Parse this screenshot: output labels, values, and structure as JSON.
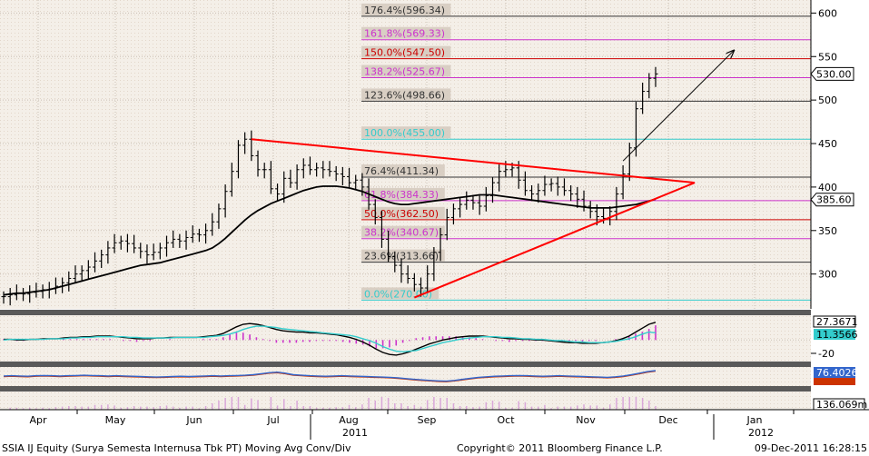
{
  "chart_data": {
    "type": "line",
    "footer": {
      "left": "SSIA IJ Equity (Surya Semesta Internusa Tbk PT) Moving Avg Conv/Div",
      "center": "Copyright© 2011 Bloomberg Finance L.P.",
      "right": "09-Dec-2011 16:28:15"
    },
    "x_labels": {
      "months": [
        "Apr",
        "May",
        "Jun",
        "Jul",
        "Aug",
        "Sep",
        "Oct",
        "Nov",
        "Dec",
        "Jan"
      ],
      "years": [
        "2011",
        "2012"
      ]
    },
    "price_panel": {
      "ylim": [
        260,
        615
      ],
      "yticks": [
        300,
        350,
        400,
        450,
        500,
        550,
        600
      ],
      "last_price_label": "530.00",
      "last_price": 530,
      "ma_label": "385.60",
      "ma_value": 385.6,
      "fibonacci_levels": [
        {
          "label": "176.4%(596.34)",
          "value": 596.34,
          "color": "#333333"
        },
        {
          "label": "161.8%(569.33)",
          "value": 569.33,
          "color": "#cc33cc"
        },
        {
          "label": "150.0%(547.50)",
          "value": 547.5,
          "color": "#cc0000"
        },
        {
          "label": "138.2%(525.67)",
          "value": 525.67,
          "color": "#cc33cc"
        },
        {
          "label": "123.6%(498.66)",
          "value": 498.66,
          "color": "#333333"
        },
        {
          "label": "100.0%(455.00)",
          "value": 455.0,
          "color": "#33cccc"
        },
        {
          "label": "76.4%(411.34)",
          "value": 411.34,
          "color": "#333333"
        },
        {
          "label": "61.8%(384.33)",
          "value": 384.33,
          "color": "#cc33cc"
        },
        {
          "label": "50.0%(362.50)",
          "value": 362.5,
          "color": "#cc0000"
        },
        {
          "label": "38.2%(340.67)",
          "value": 340.67,
          "color": "#cc33cc"
        },
        {
          "label": "23.6%(313.66)",
          "value": 313.66,
          "color": "#333333"
        },
        {
          "label": "0.0%(270.00)",
          "value": 270.0,
          "color": "#33cccc"
        }
      ],
      "series": [
        {
          "name": "",
          "color": "#000000",
          "style": "bar",
          "values": [
            274,
            276,
            278,
            277,
            279,
            280,
            282,
            283,
            286,
            290,
            295,
            300,
            304,
            308,
            315,
            322,
            330,
            336,
            338,
            335,
            330,
            326,
            322,
            325,
            330,
            336,
            340,
            338,
            342,
            346,
            345,
            350,
            360,
            375,
            395,
            418,
            448,
            455,
            436,
            420,
            420,
            398,
            392,
            410,
            405,
            420,
            425,
            420,
            422,
            420,
            418,
            415,
            412,
            405,
            408,
            400,
            380,
            365,
            340,
            320,
            310,
            300,
            295,
            288,
            284,
            300,
            325,
            345,
            365,
            375,
            380,
            385,
            382,
            378,
            390,
            405,
            418,
            420,
            422,
            408,
            396,
            392,
            396,
            403,
            404,
            400,
            396,
            392,
            386,
            378,
            372,
            366,
            364,
            372,
            392,
            415,
            445,
            490,
            510,
            525,
            530
          ]
        },
        {
          "name": "",
          "color": "#000000",
          "style": "line",
          "values": [
            276,
            277,
            278,
            278,
            279,
            280,
            281,
            282,
            284,
            286,
            288,
            290,
            292,
            294,
            296,
            298,
            300,
            302,
            304,
            306,
            308,
            310,
            311,
            312,
            313,
            315,
            317,
            319,
            321,
            323,
            325,
            327,
            330,
            335,
            341,
            348,
            355,
            362,
            368,
            373,
            377,
            381,
            384,
            387,
            390,
            393,
            396,
            398,
            400,
            401,
            401,
            401,
            400,
            399,
            397,
            395,
            392,
            389,
            386,
            383,
            381,
            380,
            380,
            381,
            382,
            383,
            384,
            385,
            386,
            387,
            388,
            389,
            390,
            391,
            391,
            391,
            390,
            389,
            388,
            387,
            386,
            385,
            384,
            383,
            382,
            381,
            380,
            379,
            378,
            377,
            376,
            376,
            376,
            376,
            377,
            378,
            379,
            380,
            382,
            384,
            386
          ]
        }
      ],
      "annotations": {
        "trend_arrow_from": {
          "x_index": 95,
          "value": 430
        },
        "trend_arrow_to": {
          "x_index": 112,
          "value": 557
        },
        "triangle_apex": {
          "x_index": 106,
          "value": 405
        }
      }
    },
    "macd_panel": {
      "labels": {
        "upper": "27.3671",
        "lower": "11.3566",
        "tick": "-20"
      },
      "series": [
        {
          "name": "",
          "color": "#000000",
          "values": [
            1,
            1,
            0,
            0,
            1,
            1,
            2,
            2,
            2,
            3,
            4,
            4,
            5,
            5,
            6,
            6,
            6,
            5,
            4,
            3,
            2,
            2,
            2,
            3,
            3,
            4,
            4,
            4,
            4,
            4,
            5,
            6,
            7,
            10,
            15,
            20,
            24,
            25,
            24,
            22,
            19,
            16,
            14,
            13,
            12,
            12,
            11,
            11,
            10,
            9,
            8,
            6,
            4,
            1,
            -3,
            -8,
            -14,
            -19,
            -22,
            -23,
            -21,
            -18,
            -14,
            -10,
            -6,
            -3,
            0,
            2,
            4,
            5,
            6,
            6,
            6,
            5,
            4,
            3,
            2,
            2,
            1,
            1,
            0,
            0,
            -1,
            -2,
            -3,
            -4,
            -4,
            -5,
            -5,
            -5,
            -4,
            -3,
            -1,
            2,
            6,
            12,
            18,
            24,
            27
          ]
        },
        {
          "name": "",
          "color": "#33cccc",
          "values": [
            0,
            1,
            1,
            1,
            1,
            1,
            1,
            2,
            2,
            2,
            3,
            3,
            4,
            4,
            5,
            5,
            5,
            5,
            5,
            4,
            4,
            3,
            3,
            3,
            3,
            3,
            4,
            4,
            4,
            4,
            4,
            5,
            6,
            7,
            9,
            12,
            16,
            19,
            21,
            21,
            20,
            19,
            17,
            16,
            15,
            14,
            13,
            12,
            11,
            10,
            9,
            8,
            7,
            5,
            2,
            -1,
            -5,
            -10,
            -14,
            -17,
            -18,
            -17,
            -16,
            -13,
            -10,
            -7,
            -4,
            -2,
            0,
            2,
            3,
            4,
            5,
            5,
            5,
            4,
            4,
            3,
            2,
            2,
            1,
            1,
            0,
            -1,
            -1,
            -2,
            -3,
            -3,
            -4,
            -4,
            -4,
            -3,
            -2,
            0,
            2,
            5,
            9,
            12,
            11
          ]
        }
      ]
    },
    "rsi_panel": {
      "labels": {
        "value": "76.4026"
      },
      "series": [
        {
          "name": "",
          "color": "#cc3300",
          "values": [
            55,
            56,
            55,
            54,
            56,
            57,
            56,
            55,
            56,
            57,
            58,
            57,
            56,
            55,
            56,
            55,
            54,
            53,
            52,
            51,
            52,
            53,
            54,
            53,
            54,
            55,
            56,
            55,
            56,
            57,
            58,
            60,
            64,
            68,
            70,
            66,
            60,
            58,
            56,
            55,
            54,
            55,
            56,
            55,
            54,
            53,
            52,
            51,
            50,
            48,
            45,
            42,
            40,
            38,
            36,
            35,
            38,
            42,
            46,
            50,
            52,
            54,
            55,
            56,
            57,
            56,
            55,
            54,
            55,
            56,
            55,
            54,
            53,
            52,
            51,
            50,
            52,
            55,
            60,
            66,
            72,
            76
          ]
        },
        {
          "name": "",
          "color": "#3366cc",
          "values": [
            57,
            58,
            57,
            56,
            58,
            59,
            58,
            57,
            58,
            59,
            60,
            59,
            58,
            57,
            58,
            57,
            56,
            55,
            54,
            53,
            54,
            55,
            56,
            55,
            56,
            57,
            58,
            57,
            58,
            59,
            60,
            62,
            66,
            70,
            72,
            68,
            62,
            60,
            58,
            57,
            56,
            57,
            58,
            57,
            56,
            55,
            54,
            53,
            52,
            50,
            47,
            44,
            42,
            40,
            38,
            37,
            40,
            44,
            48,
            52,
            54,
            56,
            57,
            58,
            59,
            58,
            57,
            56,
            57,
            58,
            57,
            56,
            55,
            54,
            53,
            52,
            54,
            57,
            62,
            68,
            74,
            78
          ]
        }
      ]
    },
    "volume_panel": {
      "label": "136.069m"
    },
    "colors": {
      "fib_label_bg": "#d4c9bd",
      "background": "#f4efe8",
      "axis_bar": "#5a5a5a",
      "triangle": "#ff0000",
      "macd_hist": "#cc33cc"
    },
    "grid": true
  }
}
